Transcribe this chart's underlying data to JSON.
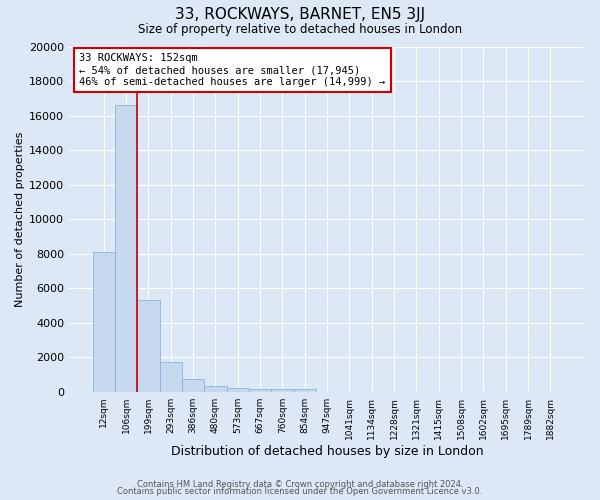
{
  "title": "33, ROCKWAYS, BARNET, EN5 3JJ",
  "subtitle": "Size of property relative to detached houses in London",
  "xlabel": "Distribution of detached houses by size in London",
  "ylabel": "Number of detached properties",
  "bar_color": "#c5d8ee",
  "bar_edge_color": "#7aadd4",
  "background_color": "#dce8f5",
  "fig_background_color": "#dce8f5",
  "grid_color": "#ffffff",
  "annotation_text": "33 ROCKWAYS: 152sqm\n← 54% of detached houses are smaller (17,945)\n46% of semi-detached houses are larger (14,999) →",
  "annotation_box_color": "#ffffff",
  "annotation_box_edge": "#cc0000",
  "property_line_color": "#cc0000",
  "footer_line1": "Contains HM Land Registry data © Crown copyright and database right 2024.",
  "footer_line2": "Contains public sector information licensed under the Open Government Licence v3.0.",
  "categories": [
    "12sqm",
    "106sqm",
    "199sqm",
    "293sqm",
    "386sqm",
    "480sqm",
    "573sqm",
    "667sqm",
    "760sqm",
    "854sqm",
    "947sqm",
    "1041sqm",
    "1134sqm",
    "1228sqm",
    "1321sqm",
    "1415sqm",
    "1508sqm",
    "1602sqm",
    "1695sqm",
    "1789sqm",
    "1882sqm"
  ],
  "values": [
    8100,
    16600,
    5300,
    1750,
    750,
    350,
    250,
    175,
    175,
    175,
    0,
    0,
    0,
    0,
    0,
    0,
    0,
    0,
    0,
    0,
    0
  ],
  "ylim": [
    0,
    20000
  ],
  "yticks": [
    0,
    2000,
    4000,
    6000,
    8000,
    10000,
    12000,
    14000,
    16000,
    18000,
    20000
  ]
}
